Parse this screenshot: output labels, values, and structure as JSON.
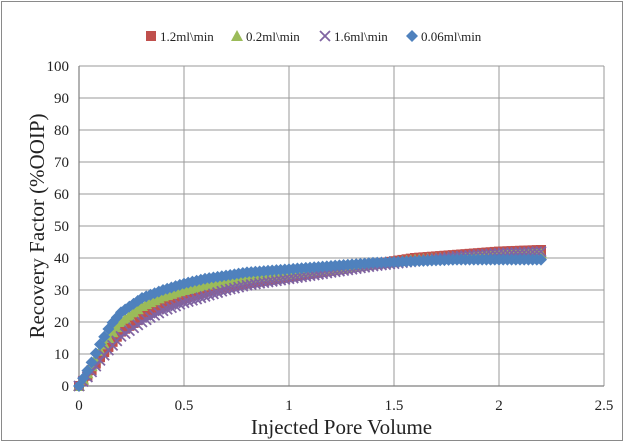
{
  "chart_data": {
    "type": "scatter",
    "xlabel": "Injected Pore Volume",
    "ylabel": "Recovery Factor (%OOIP)",
    "xlim": [
      0,
      2.5
    ],
    "ylim": [
      0,
      100
    ],
    "x_ticks": [
      "0",
      "0.5",
      "1",
      "1.5",
      "2",
      "2.5"
    ],
    "y_ticks": [
      "0",
      "10",
      "20",
      "30",
      "40",
      "50",
      "60",
      "70",
      "80",
      "90",
      "100"
    ],
    "grid": true,
    "legend_position": "top",
    "series": [
      {
        "name": "1.2ml\\min",
        "marker": "square",
        "color": "#c0504d",
        "x": [
          0,
          0.05,
          0.1,
          0.15,
          0.2,
          0.3,
          0.4,
          0.5,
          0.6,
          0.7,
          0.8,
          1.0,
          1.2,
          1.4,
          1.6,
          1.8,
          2.0,
          2.2
        ],
        "y": [
          0,
          4,
          9,
          13,
          17,
          21.5,
          25,
          27.5,
          29.5,
          31,
          32,
          34,
          36,
          38,
          40,
          41,
          42,
          42.5
        ]
      },
      {
        "name": "0.2ml\\min",
        "marker": "triangle",
        "color": "#9bbb59",
        "x": [
          0,
          0.05,
          0.1,
          0.15,
          0.2,
          0.3,
          0.4,
          0.5,
          0.6,
          0.7,
          0.8,
          1.0,
          1.2,
          1.4,
          1.6,
          1.8,
          2.0,
          2.2
        ],
        "y": [
          0,
          5,
          11,
          16,
          20,
          25,
          28,
          30,
          31.5,
          32.5,
          33.5,
          35,
          36.5,
          38,
          39.5,
          40.5,
          41,
          41.5
        ]
      },
      {
        "name": "1.6ml\\min",
        "marker": "x",
        "color": "#8064a2",
        "x": [
          0,
          0.05,
          0.1,
          0.15,
          0.2,
          0.3,
          0.4,
          0.5,
          0.6,
          0.7,
          0.8,
          1.0,
          1.2,
          1.4,
          1.6,
          1.8,
          2.0,
          2.2
        ],
        "y": [
          0,
          3.5,
          8,
          12,
          15.5,
          20,
          23.5,
          26,
          28,
          30,
          31.5,
          33.5,
          35.5,
          37.5,
          39,
          40.5,
          41.5,
          42
        ]
      },
      {
        "name": "0.06ml\\min",
        "marker": "diamond",
        "color": "#4f81bd",
        "x": [
          0,
          0.05,
          0.1,
          0.15,
          0.2,
          0.3,
          0.4,
          0.5,
          0.6,
          0.7,
          0.8,
          1.0,
          1.2,
          1.4,
          1.6,
          1.8,
          2.0,
          2.2
        ],
        "y": [
          0,
          6,
          13,
          19,
          23,
          27.5,
          30,
          32,
          33.5,
          34.5,
          35.5,
          36.5,
          37.5,
          38.5,
          39,
          39.5,
          39.5,
          39.5
        ]
      }
    ]
  }
}
